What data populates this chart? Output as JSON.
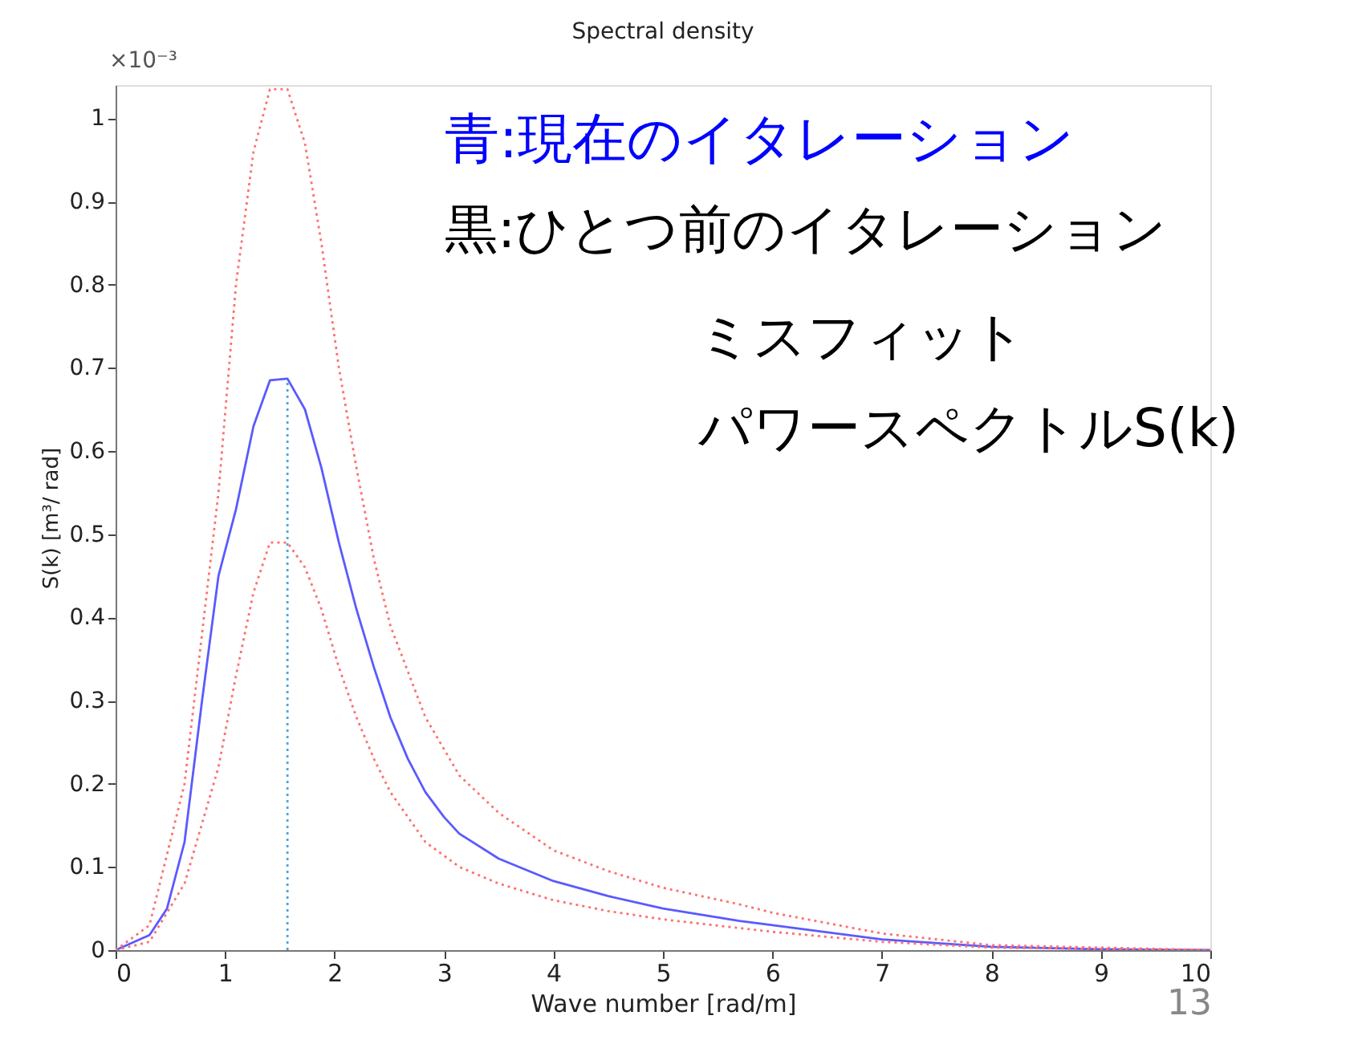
{
  "chart_data": {
    "type": "line",
    "title": "Spectral density",
    "xlabel": "Wave number [rad/m]",
    "ylabel": "S(k) [m³/ rad]",
    "xlim": [
      0,
      10
    ],
    "xticks": [
      0,
      1,
      2,
      3,
      4,
      5,
      6,
      7,
      8,
      9,
      10
    ],
    "ylim": [
      0,
      1.04
    ],
    "yticks": [
      0,
      0.1,
      0.2,
      0.3,
      0.4,
      0.5,
      0.6,
      0.7,
      0.8,
      0.9,
      1
    ],
    "grid": false,
    "marker": "none",
    "series": [
      {
        "color": "#5a5aff",
        "line_style": "solid",
        "x": [
          0,
          0.31,
          0.47,
          0.63,
          0.79,
          0.94,
          1.1,
          1.26,
          1.41,
          1.57,
          1.73,
          1.88,
          2.04,
          2.2,
          2.36,
          2.51,
          2.67,
          2.83,
          3.0,
          3.14,
          3.5,
          4,
          4.5,
          5,
          5.7,
          6,
          7,
          8,
          9,
          10
        ],
        "values": [
          0,
          0.018,
          0.05,
          0.13,
          0.3,
          0.45,
          0.53,
          0.63,
          0.685,
          0.687,
          0.65,
          0.58,
          0.49,
          0.41,
          0.34,
          0.28,
          0.23,
          0.19,
          0.16,
          0.14,
          0.11,
          0.083,
          0.065,
          0.05,
          0.035,
          0.03,
          0.013,
          0.004,
          0.001,
          0
        ]
      },
      {
        "color": "#ff7070",
        "line_style": "dotted",
        "x": [
          0,
          0.31,
          0.63,
          0.94,
          1.1,
          1.26,
          1.41,
          1.57,
          1.73,
          1.88,
          2.04,
          2.2,
          2.36,
          2.51,
          2.83,
          3.14,
          3.5,
          4,
          4.5,
          5,
          5.7,
          6,
          7,
          8,
          10
        ],
        "values": [
          0,
          0.03,
          0.2,
          0.55,
          0.8,
          0.96,
          1.035,
          1.035,
          0.97,
          0.85,
          0.7,
          0.58,
          0.47,
          0.39,
          0.28,
          0.21,
          0.165,
          0.12,
          0.095,
          0.075,
          0.055,
          0.045,
          0.02,
          0.006,
          0
        ]
      },
      {
        "color": "#ff7070",
        "line_style": "dotted",
        "x": [
          0,
          0.31,
          0.63,
          0.94,
          1.1,
          1.26,
          1.41,
          1.57,
          1.73,
          1.88,
          2.04,
          2.2,
          2.36,
          2.51,
          2.83,
          3.14,
          3.5,
          4,
          4.5,
          5,
          6,
          7,
          8,
          10
        ],
        "values": [
          0,
          0.01,
          0.08,
          0.22,
          0.33,
          0.43,
          0.49,
          0.49,
          0.46,
          0.41,
          0.34,
          0.28,
          0.23,
          0.19,
          0.13,
          0.1,
          0.08,
          0.06,
          0.047,
          0.037,
          0.022,
          0.01,
          0.003,
          0
        ]
      },
      {
        "color": "#4da6d9",
        "line_style": "dotted",
        "x": [
          1.57,
          1.57
        ],
        "values": [
          0,
          0.687
        ]
      }
    ],
    "annotations": [
      "×10⁻³",
      "青:現在のイタレーション",
      "黒:ひとつ前のイタレーション",
      "ミスフィット",
      "パワースペクトルS(k)",
      "13"
    ]
  }
}
